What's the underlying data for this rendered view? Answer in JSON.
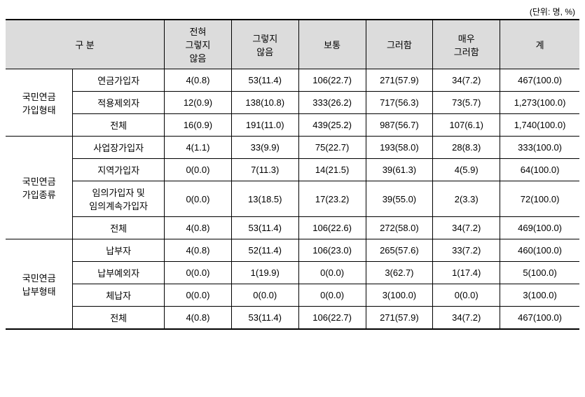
{
  "unit_note": "(단위: 명, %)",
  "header": {
    "category": "구 분",
    "scale": [
      "전혀\n그렇지\n않음",
      "그렇지\n않음",
      "보통",
      "그러함",
      "매우\n그러함",
      "계"
    ]
  },
  "groups": [
    {
      "label": "국민연금\n가입형태",
      "rows": [
        {
          "label": "연금가입자",
          "values": [
            "4(0.8)",
            "53(11.4)",
            "106(22.7)",
            "271(57.9)",
            "34(7.2)",
            "467(100.0)"
          ]
        },
        {
          "label": "적용제외자",
          "values": [
            "12(0.9)",
            "138(10.8)",
            "333(26.2)",
            "717(56.3)",
            "73(5.7)",
            "1,273(100.0)"
          ]
        },
        {
          "label": "전체",
          "values": [
            "16(0.9)",
            "191(11.0)",
            "439(25.2)",
            "987(56.7)",
            "107(6.1)",
            "1,740(100.0)"
          ]
        }
      ]
    },
    {
      "label": "국민연금\n가입종류",
      "rows": [
        {
          "label": "사업장가입자",
          "values": [
            "4(1.1)",
            "33(9.9)",
            "75(22.7)",
            "193(58.0)",
            "28(8.3)",
            "333(100.0)"
          ]
        },
        {
          "label": "지역가입자",
          "values": [
            "0(0.0)",
            "7(11.3)",
            "14(21.5)",
            "39(61.3)",
            "4(5.9)",
            "64(100.0)"
          ]
        },
        {
          "label": "임의가입자 및\n임의계속가입자",
          "values": [
            "0(0.0)",
            "13(18.5)",
            "17(23.2)",
            "39(55.0)",
            "2(3.3)",
            "72(100.0)"
          ]
        },
        {
          "label": "전체",
          "values": [
            "4(0.8)",
            "53(11.4)",
            "106(22.6)",
            "272(58.0)",
            "34(7.2)",
            "469(100.0)"
          ]
        }
      ]
    },
    {
      "label": "국민연금\n납부형태",
      "rows": [
        {
          "label": "납부자",
          "values": [
            "4(0.8)",
            "52(11.4)",
            "106(23.0)",
            "265(57.6)",
            "33(7.2)",
            "460(100.0)"
          ]
        },
        {
          "label": "납부예외자",
          "values": [
            "0(0.0)",
            "1(19.9)",
            "0(0.0)",
            "3(62.7)",
            "1(17.4)",
            "5(100.0)"
          ]
        },
        {
          "label": "체납자",
          "values": [
            "0(0.0)",
            "0(0.0)",
            "0(0.0)",
            "3(100.0)",
            "0(0.0)",
            "3(100.0)"
          ]
        },
        {
          "label": "전체",
          "values": [
            "4(0.8)",
            "53(11.4)",
            "106(22.7)",
            "271(57.9)",
            "34(7.2)",
            "467(100.0)"
          ]
        }
      ]
    }
  ]
}
